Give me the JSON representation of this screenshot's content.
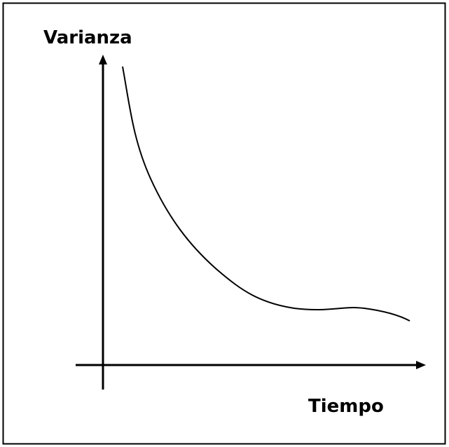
{
  "axes": {
    "y_label": "Varianza",
    "x_label": "Tiempo"
  }
}
